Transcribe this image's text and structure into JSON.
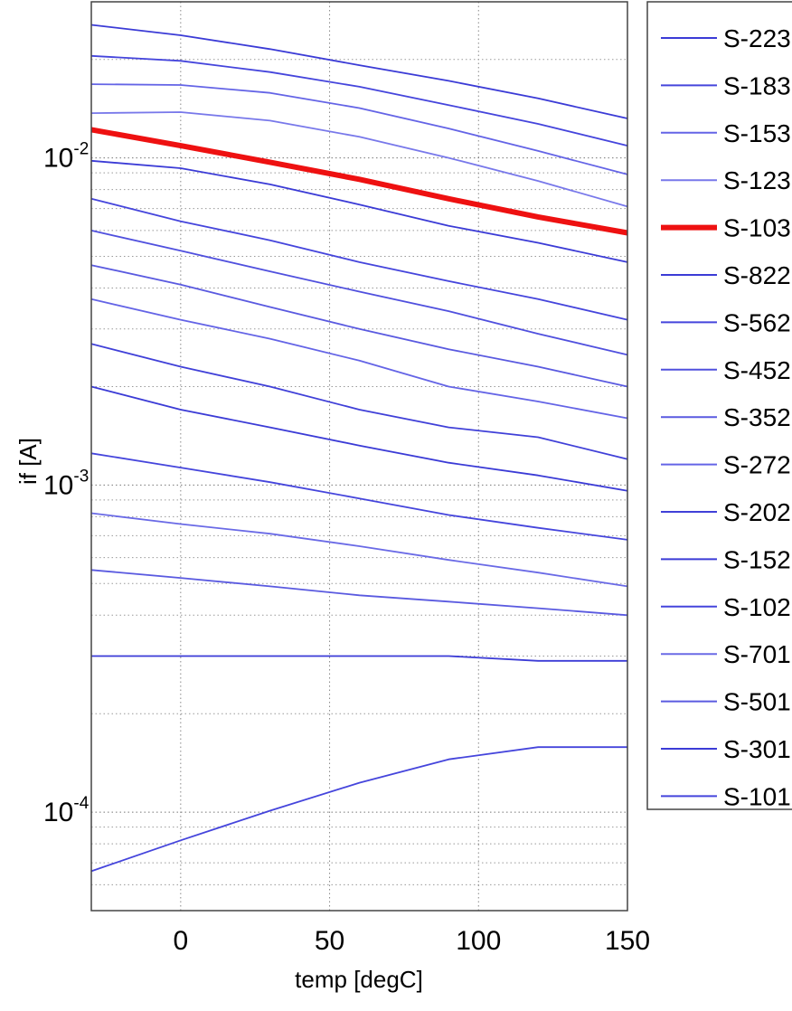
{
  "chart_data": {
    "type": "line",
    "xlabel": "temp [degC]",
    "ylabel": "if [A]",
    "xlim": [
      -30,
      150
    ],
    "ylim": [
      5e-05,
      0.03
    ],
    "yscale": "log",
    "grid": true,
    "legend_placement": "outside-right",
    "x_ticks": [
      0,
      50,
      100,
      150
    ],
    "y_ticks": [
      {
        "value": 0.0001,
        "base": "10",
        "exp": "-4"
      },
      {
        "value": 0.001,
        "base": "10",
        "exp": "-3"
      },
      {
        "value": 0.01,
        "base": "10",
        "exp": "-2"
      }
    ],
    "x": [
      -30,
      0,
      30,
      60,
      90,
      120,
      150
    ],
    "series": [
      {
        "name": "S-223",
        "color": "#3b3bd6",
        "values": [
          0.0255,
          0.0237,
          0.0215,
          0.0192,
          0.0172,
          0.0152,
          0.0132
        ]
      },
      {
        "name": "S-183",
        "color": "#4545dc",
        "values": [
          0.0205,
          0.0198,
          0.0183,
          0.0165,
          0.0145,
          0.0127,
          0.0109
        ]
      },
      {
        "name": "S-153",
        "color": "#6464e6",
        "values": [
          0.0168,
          0.0167,
          0.0158,
          0.0142,
          0.0123,
          0.0105,
          0.0089
        ]
      },
      {
        "name": "S-123",
        "color": "#7878ea",
        "values": [
          0.0137,
          0.0138,
          0.013,
          0.0116,
          0.01,
          0.0085,
          0.0071
        ]
      },
      {
        "name": "S-103",
        "color": "#ee1111",
        "width": 6,
        "values": [
          0.0122,
          0.0109,
          0.0097,
          0.0086,
          0.0075,
          0.0066,
          0.0059
        ]
      },
      {
        "name": "S-822",
        "color": "#3b3bd6",
        "values": [
          0.0098,
          0.0093,
          0.0083,
          0.0072,
          0.0062,
          0.0055,
          0.0048
        ]
      },
      {
        "name": "S-562",
        "color": "#4545dc",
        "values": [
          0.0075,
          0.0064,
          0.0056,
          0.0048,
          0.0042,
          0.0037,
          0.0032
        ]
      },
      {
        "name": "S-452",
        "color": "#5050de",
        "values": [
          0.006,
          0.0052,
          0.0045,
          0.0039,
          0.0034,
          0.0029,
          0.0025
        ]
      },
      {
        "name": "S-352",
        "color": "#5a5ae0",
        "values": [
          0.0047,
          0.0041,
          0.0035,
          0.003,
          0.0026,
          0.0023,
          0.002
        ]
      },
      {
        "name": "S-272",
        "color": "#6464e6",
        "values": [
          0.0037,
          0.0032,
          0.0028,
          0.0024,
          0.002,
          0.0018,
          0.0016
        ]
      },
      {
        "name": "S-202",
        "color": "#4040d8",
        "values": [
          0.0027,
          0.0023,
          0.002,
          0.0017,
          0.0015,
          0.0014,
          0.0012
        ]
      },
      {
        "name": "S-152",
        "color": "#3b3bd6",
        "values": [
          0.002,
          0.0017,
          0.0015,
          0.00132,
          0.00117,
          0.00107,
          0.00096
        ]
      },
      {
        "name": "S-102",
        "color": "#4545dc",
        "values": [
          0.00125,
          0.00113,
          0.00102,
          0.00091,
          0.00081,
          0.00074,
          0.00068
        ]
      },
      {
        "name": "S-701",
        "color": "#6a6ae6",
        "values": [
          0.00082,
          0.00076,
          0.00071,
          0.00065,
          0.00059,
          0.00054,
          0.00049
        ]
      },
      {
        "name": "S-501",
        "color": "#5a5ae0",
        "values": [
          0.00055,
          0.00052,
          0.00049,
          0.00046,
          0.00044,
          0.00042,
          0.0004
        ]
      },
      {
        "name": "S-301",
        "color": "#3b3bd6",
        "values": [
          0.0003,
          0.0003,
          0.0003,
          0.0003,
          0.0003,
          0.00029,
          0.00029
        ]
      },
      {
        "name": "S-101",
        "color": "#4545dc",
        "values": [
          6.6e-05,
          8.2e-05,
          0.000101,
          0.000123,
          0.000145,
          0.000158,
          0.000158
        ]
      }
    ]
  }
}
